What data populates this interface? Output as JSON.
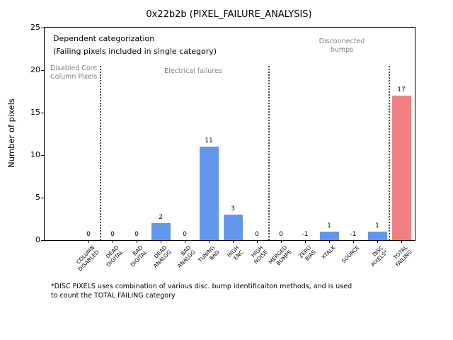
{
  "title": "0x22b2b (PIXEL_FAILURE_ANALYSIS)",
  "ylabel": "Number of pixels",
  "annotations": {
    "dependent_line1": "Dependent categorization",
    "dependent_line2": "(Failing pixels included in single category)",
    "group_disabled": "Disabled Core\nColumn Pixels",
    "group_electrical": "Electrical failures",
    "group_disconnected": "Disconnected\nbumps"
  },
  "footnote": "*DISC PIXELS uses combination of various disc. bump identificaiton methods, and is used\nto count the TOTAL FAILING category",
  "chart_data": {
    "type": "bar",
    "title": "0x22b2b (PIXEL_FAILURE_ANALYSIS)",
    "xlabel": "",
    "ylabel": "Number of pixels",
    "ylim": [
      0,
      25
    ],
    "yticks": [
      0,
      5,
      10,
      15,
      20,
      25
    ],
    "grid": false,
    "legend": "none",
    "categories": [
      "COLUMN\nDISABLED",
      "DEAD\nDIGITAL",
      "BAD\nDIGITAL",
      "DEAD\nANALOG",
      "BAD\nANALOG",
      "TUNING\nBAD",
      "HIGH\nENC",
      "HIGH\nNOISE",
      "MERGED\nBUMPS",
      "ZERO\nBIAS",
      "XTALK",
      "SOURCE",
      "DISC\nPIXELS*",
      "TOTAL\nFAILING"
    ],
    "values": [
      0,
      0,
      0,
      2,
      0,
      11,
      3,
      0,
      0,
      -1,
      1,
      -1,
      1,
      17
    ],
    "bar_colors": [
      "#6495ED",
      "#6495ED",
      "#6495ED",
      "#6495ED",
      "#6495ED",
      "#6495ED",
      "#6495ED",
      "#6495ED",
      "#6495ED",
      "#6495ED",
      "#6495ED",
      "#6495ED",
      "#6495ED",
      "#F08080"
    ],
    "separator_style": "dotted-vertical",
    "separators_after_index": [
      0,
      7,
      12
    ],
    "value_labels_shown": true
  }
}
